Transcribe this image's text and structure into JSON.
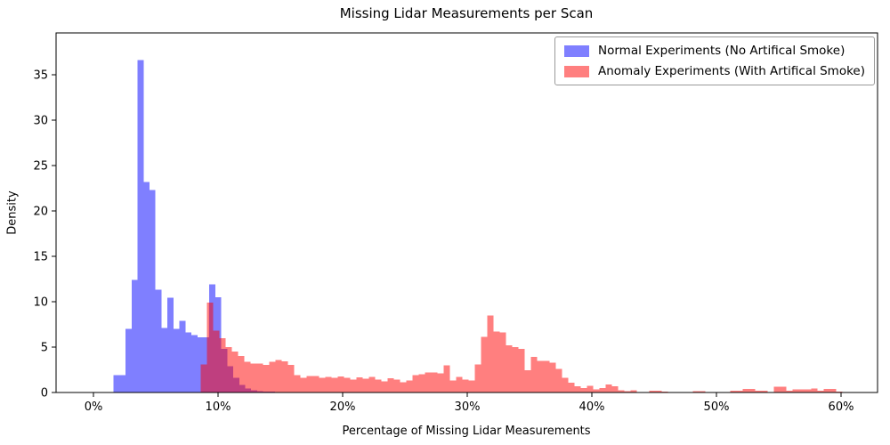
{
  "figure": {
    "background": "#ffffff",
    "text_color": "#000000",
    "spine_color": "#000000"
  },
  "chart_data": {
    "type": "histogram",
    "title": "Missing Lidar Measurements per Scan",
    "xlabel": "Percentage of Missing Lidar Measurements",
    "ylabel": "Density",
    "grid": false,
    "legend_position": "upper right",
    "xlim_pct": [
      -3.0,
      62.9
    ],
    "ylim": [
      0,
      39.6
    ],
    "x_ticks": [
      {
        "value": 0,
        "label": "0%"
      },
      {
        "value": 10,
        "label": "10%"
      },
      {
        "value": 20,
        "label": "20%"
      },
      {
        "value": 30,
        "label": "30%"
      },
      {
        "value": 40,
        "label": "40%"
      },
      {
        "value": 50,
        "label": "50%"
      },
      {
        "value": 60,
        "label": "60%"
      }
    ],
    "y_ticks": [
      {
        "value": 0,
        "label": "0"
      },
      {
        "value": 5,
        "label": "5"
      },
      {
        "value": 10,
        "label": "10"
      },
      {
        "value": 15,
        "label": "15"
      },
      {
        "value": 20,
        "label": "20"
      },
      {
        "value": 25,
        "label": "25"
      },
      {
        "value": 30,
        "label": "30"
      },
      {
        "value": 35,
        "label": "35"
      }
    ],
    "series": [
      {
        "name": "Normal Experiments (No Artifical Smoke)",
        "color": "rgba(0,0,255,0.5)",
        "bin_start_pct": 1.62,
        "bin_width_pct": 0.48,
        "densities": [
          1.9,
          1.9,
          7.0,
          12.4,
          36.6,
          23.2,
          22.3,
          11.3,
          7.1,
          10.45,
          7.0,
          7.9,
          6.6,
          6.3,
          6.1,
          6.1,
          11.9,
          10.5,
          4.8,
          2.9,
          1.6,
          0.85,
          0.45,
          0.25,
          0.15,
          0.1,
          0.08,
          0.05
        ]
      },
      {
        "name": "Anomaly Experiments (With Artifical Smoke)",
        "color": "rgba(255,0,0,0.5)",
        "bin_start_pct": 8.6,
        "bin_width_pct": 0.5,
        "densities": [
          3.1,
          9.9,
          6.8,
          6.0,
          5.0,
          4.5,
          4.0,
          3.4,
          3.2,
          3.2,
          3.05,
          3.4,
          3.6,
          3.45,
          3.05,
          1.9,
          1.6,
          1.8,
          1.8,
          1.6,
          1.7,
          1.6,
          1.75,
          1.6,
          1.4,
          1.65,
          1.5,
          1.73,
          1.4,
          1.24,
          1.57,
          1.4,
          1.14,
          1.34,
          1.9,
          2.0,
          2.22,
          2.22,
          2.12,
          3.0,
          1.34,
          1.73,
          1.4,
          1.34,
          3.1,
          6.15,
          8.5,
          6.7,
          6.6,
          5.2,
          5.0,
          4.8,
          2.45,
          3.9,
          3.5,
          3.5,
          3.3,
          2.6,
          1.6,
          1.1,
          0.7,
          0.5,
          0.75,
          0.35,
          0.5,
          0.9,
          0.7,
          0.25,
          0.15,
          0.26,
          0.05,
          0.05,
          0.2,
          0.2,
          0.1,
          0.05,
          0.05,
          0.05,
          0.05,
          0.15,
          0.15,
          0.05,
          0.05,
          0.05,
          0.05,
          0.2,
          0.2,
          0.4,
          0.4,
          0.2,
          0.2,
          0.05,
          0.65,
          0.65,
          0.2,
          0.33,
          0.33,
          0.33,
          0.45,
          0.2,
          0.4,
          0.4,
          0.1
        ]
      }
    ]
  }
}
